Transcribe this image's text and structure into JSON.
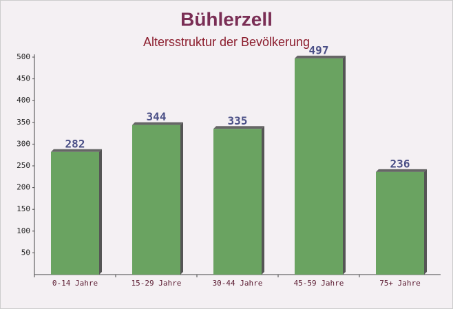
{
  "chart_data": {
    "type": "bar",
    "title": "Bühlerzell",
    "subtitle": "Altersstruktur der Bevölkerung",
    "categories": [
      "0-14 Jahre",
      "15-29 Jahre",
      "30-44 Jahre",
      "45-59 Jahre",
      "75+ Jahre"
    ],
    "values": [
      282,
      344,
      335,
      497,
      236
    ],
    "color": "#6aa361",
    "ylim": [
      0,
      500
    ],
    "yticks": [
      50,
      100,
      150,
      200,
      250,
      300,
      350,
      400,
      450,
      500
    ],
    "grid": false
  }
}
